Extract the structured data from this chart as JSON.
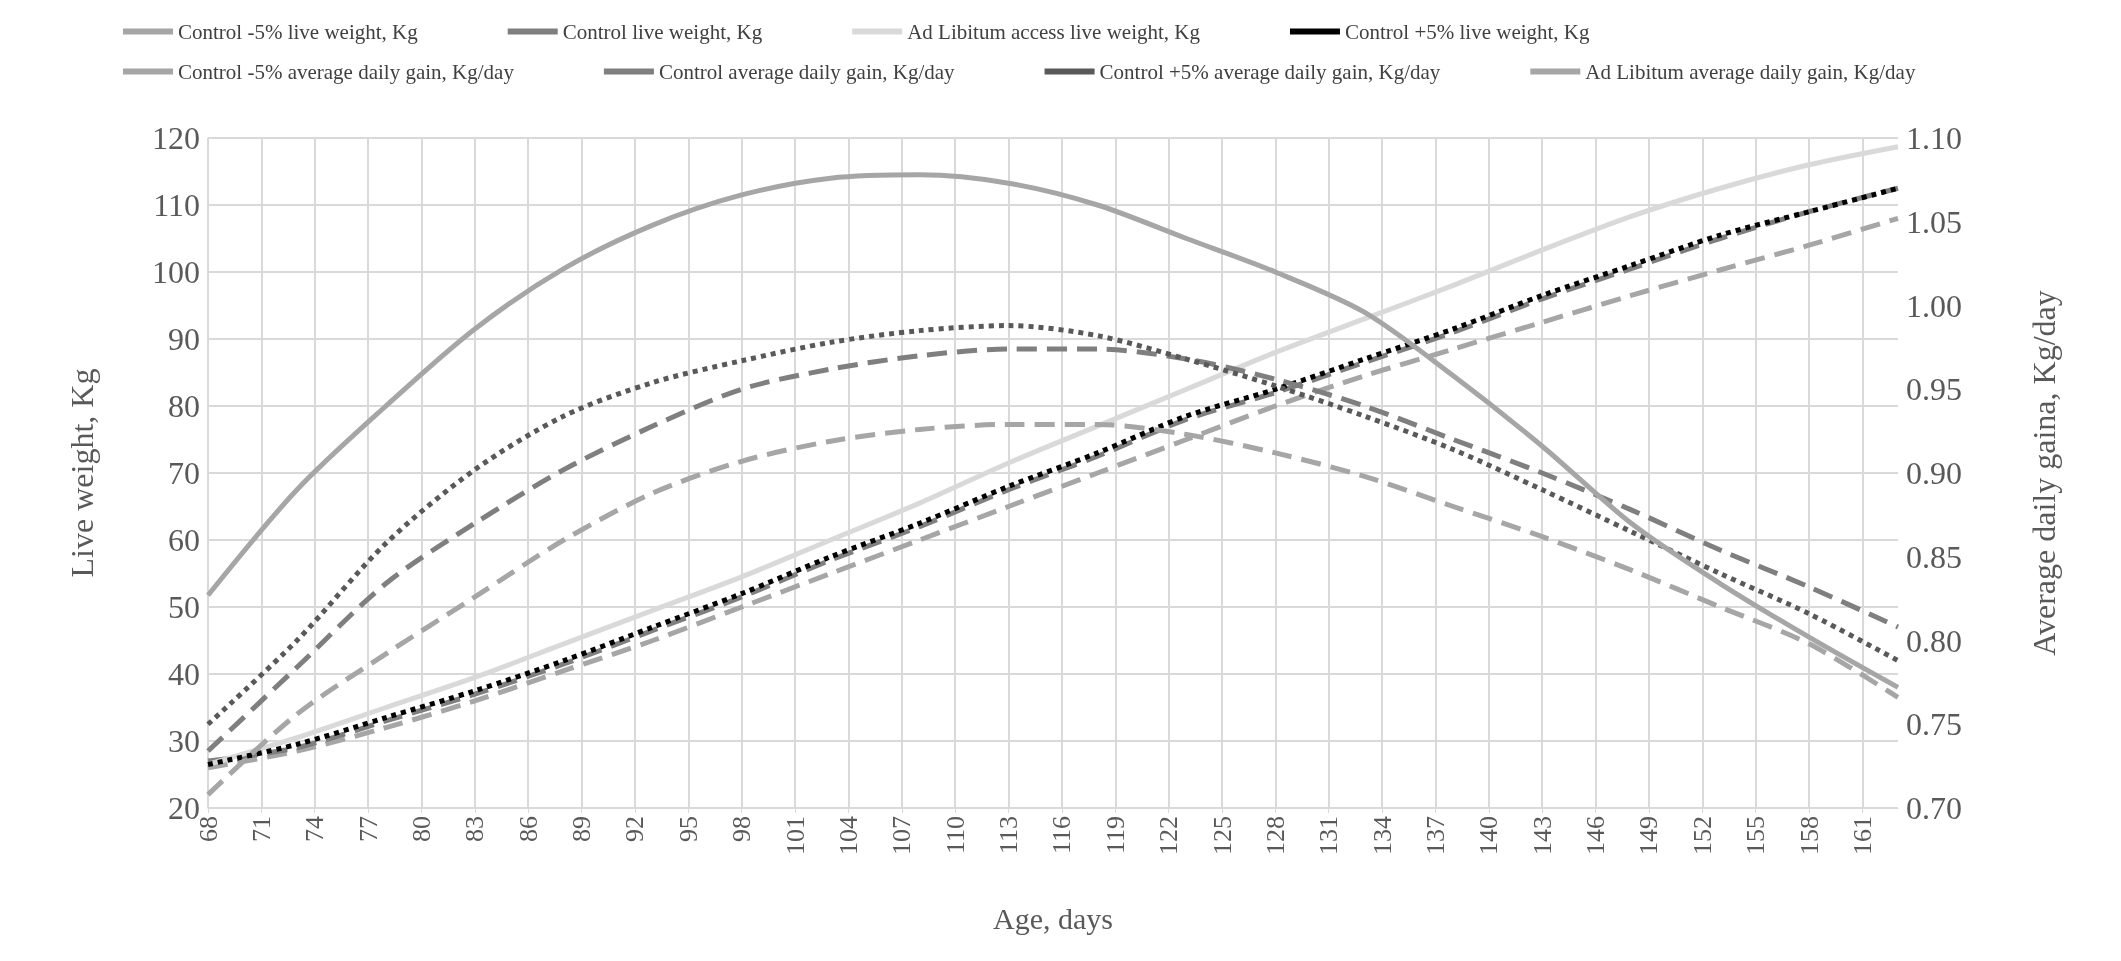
{
  "chart_data": {
    "type": "line",
    "xlabel": "Age, days",
    "ylabel": "Live weight, Kg",
    "y2label": "Average daily gaina, Kg/day",
    "x": [
      68,
      73,
      78,
      83,
      88,
      93,
      98,
      103,
      108,
      113,
      118,
      123,
      128,
      133,
      138,
      143,
      148,
      153,
      158,
      163
    ],
    "xlim": [
      68,
      163
    ],
    "xticks": [
      68,
      71,
      74,
      77,
      80,
      83,
      86,
      89,
      92,
      95,
      98,
      101,
      104,
      107,
      110,
      113,
      116,
      119,
      122,
      125,
      128,
      131,
      134,
      137,
      140,
      143,
      146,
      149,
      152,
      155,
      158,
      161
    ],
    "ylim": [
      20,
      120
    ],
    "yticks": [
      20,
      30,
      40,
      50,
      60,
      70,
      80,
      90,
      100,
      110,
      120
    ],
    "y2lim": [
      0.7,
      1.1
    ],
    "y2ticks": [
      {
        "value": 0.7,
        "label": "0.70"
      },
      {
        "value": 0.75,
        "label": "0.75"
      },
      {
        "value": 0.8,
        "label": "0.80"
      },
      {
        "value": 0.85,
        "label": "0.85"
      },
      {
        "value": 0.9,
        "label": "0.90"
      },
      {
        "value": 0.95,
        "label": "0.95"
      },
      {
        "value": 1.0,
        "label": "1.00"
      },
      {
        "value": 1.05,
        "label": "1.05"
      },
      {
        "value": 1.1,
        "label": "1.10"
      }
    ],
    "grid": true,
    "legend": "top",
    "marker": "none",
    "series": [
      {
        "name": "Control -5% live weight, Kg",
        "color": "#a6a6a6",
        "line_style": "dashed",
        "values": [
          26,
          28.5,
          32,
          36,
          40.5,
          45,
          50,
          55,
          60,
          65,
          70,
          75,
          80,
          84.5,
          88.5,
          92.5,
          96.5,
          100.3,
          104,
          108
        ]
      },
      {
        "name": "Control live weight, Kg",
        "color": "#7f7f7f",
        "line_style": "dashed",
        "values": [
          27,
          29,
          33,
          37,
          41.5,
          46.5,
          51.5,
          57,
          62,
          67.5,
          72.5,
          78,
          82,
          86.5,
          91,
          96,
          100.5,
          105,
          109,
          112.5
        ]
      },
      {
        "name": "Ad Libitum access live weight, Kg",
        "color": "#d9d9d9",
        "line_style": "solid",
        "values": [
          26.5,
          30.5,
          35,
          39.5,
          44.5,
          49.5,
          54.5,
          60,
          65.5,
          71.5,
          77,
          82.5,
          88,
          93,
          98,
          103.3,
          108.3,
          112.5,
          116,
          118.7
        ]
      },
      {
        "name": "Control +5% live weight, Kg",
        "color": "#000000",
        "line_style": "dotted",
        "values": [
          26.5,
          29.5,
          33.5,
          37.5,
          42,
          47,
          52,
          57.5,
          62.5,
          68,
          73,
          78.5,
          82.5,
          87,
          91.5,
          96.5,
          101,
          105.5,
          109,
          112.5
        ]
      },
      {
        "name": "Control -5% average daily gain, Kg/day",
        "color": "#a6a6a6",
        "line_style": "dashed",
        "axis": "y2",
        "values": [
          0.708,
          0.756,
          0.792,
          0.826,
          0.86,
          0.888,
          0.907,
          0.919,
          0.926,
          0.929,
          0.929,
          0.923,
          0.912,
          0.898,
          0.88,
          0.862,
          0.842,
          0.82,
          0.798,
          0.766
        ]
      },
      {
        "name": "Control average daily gain, Kg/day",
        "color": "#7f7f7f",
        "line_style": "dashed",
        "axis": "y2",
        "values": [
          0.734,
          0.784,
          0.834,
          0.87,
          0.902,
          0.928,
          0.95,
          0.962,
          0.97,
          0.974,
          0.974,
          0.968,
          0.956,
          0.94,
          0.92,
          0.9,
          0.878,
          0.854,
          0.832,
          0.808
        ]
      },
      {
        "name": "Control +5% average daily gain, Kg/day",
        "color": "#595959",
        "line_style": "dotted",
        "axis": "y2",
        "values": [
          0.75,
          0.8,
          0.858,
          0.902,
          0.934,
          0.954,
          0.967,
          0.978,
          0.985,
          0.988,
          0.982,
          0.968,
          0.952,
          0.934,
          0.914,
          0.89,
          0.865,
          0.84,
          0.816,
          0.788
        ]
      },
      {
        "name": "Ad Libitum average daily gain, Kg/day",
        "color": "#a6a6a6",
        "line_style": "solid",
        "axis": "y2",
        "values": [
          0.827,
          0.89,
          0.94,
          0.986,
          1.022,
          1.048,
          1.066,
          1.076,
          1.078,
          1.073,
          1.06,
          1.04,
          1.02,
          0.996,
          0.958,
          0.916,
          0.87,
          0.834,
          0.802,
          0.772
        ]
      }
    ]
  }
}
